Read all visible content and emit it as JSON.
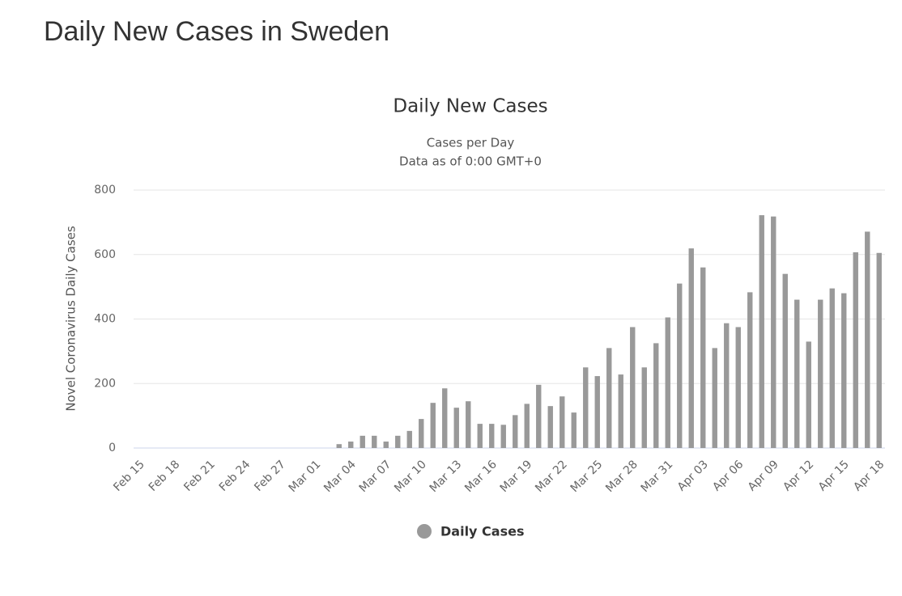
{
  "page_title": "Daily New Cases in Sweden",
  "chart_data": {
    "type": "bar",
    "title": "Daily New Cases",
    "subtitle": [
      "Cases per Day",
      "Data as of 0:00 GMT+0"
    ],
    "y_label": "Novel Coronavirus Daily Cases",
    "categories": [
      "Feb 15",
      null,
      null,
      "Feb 18",
      null,
      null,
      "Feb 21",
      null,
      null,
      "Feb 24",
      null,
      null,
      "Feb 27",
      null,
      null,
      "Mar 01",
      null,
      null,
      "Mar 04",
      null,
      null,
      "Mar 07",
      null,
      null,
      "Mar 10",
      null,
      null,
      "Mar 13",
      null,
      null,
      "Mar 16",
      null,
      null,
      "Mar 19",
      null,
      null,
      "Mar 22",
      null,
      null,
      "Mar 25",
      null,
      null,
      "Mar 28",
      null,
      null,
      "Mar 31",
      null,
      null,
      "Apr 03",
      null,
      null,
      "Apr 06",
      null,
      null,
      "Apr 09",
      null,
      null,
      "Apr 12",
      null,
      null,
      "Apr 15",
      null,
      null,
      "Apr 18"
    ],
    "series": [
      {
        "name": "Daily Cases",
        "color": "#999999",
        "values": [
          0,
          0,
          0,
          0,
          0,
          0,
          0,
          0,
          0,
          0,
          0,
          0,
          0,
          0,
          0,
          0,
          0,
          12,
          20,
          38,
          38,
          20,
          38,
          53,
          90,
          140,
          185,
          125,
          145,
          75,
          75,
          72,
          102,
          137,
          196,
          130,
          160,
          110,
          250,
          223,
          310,
          228,
          375,
          250,
          325,
          405,
          510,
          619,
          560,
          310,
          387,
          375,
          483,
          722,
          718,
          540,
          460,
          330,
          460,
          495,
          480,
          607,
          671,
          605
        ]
      }
    ],
    "ylim": [
      0,
      800
    ],
    "yticks": [
      0,
      200,
      400,
      600,
      800
    ],
    "grid": true,
    "legend": "bottom"
  }
}
